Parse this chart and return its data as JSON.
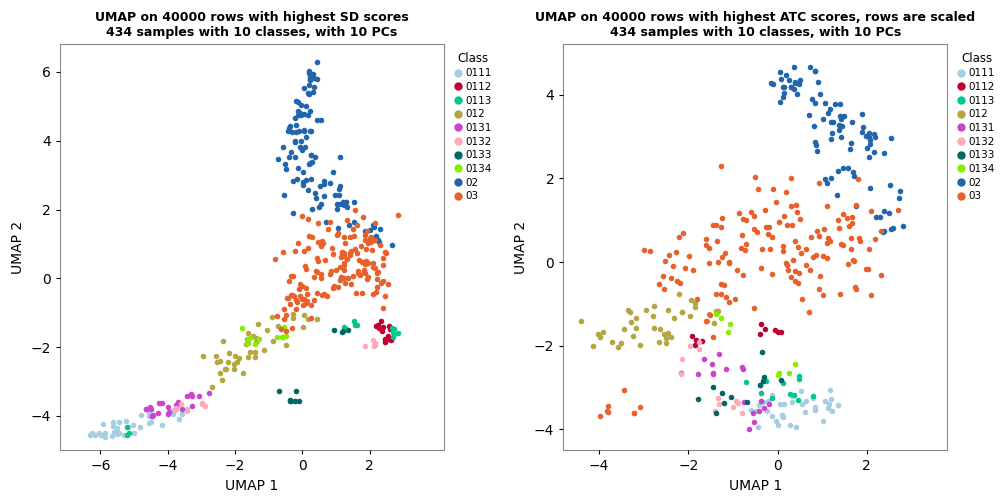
{
  "title1": "UMAP on 40000 rows with highest SD scores\n434 samples with 10 classes, with 10 PCs",
  "title2": "UMAP on 40000 rows with highest ATC scores, rows are scaled\n434 samples with 10 classes, with 10 PCs",
  "xlabel": "UMAP 1",
  "ylabel": "UMAP 2",
  "classes": [
    "0111",
    "0112",
    "0113",
    "012",
    "0131",
    "0132",
    "0133",
    "0134",
    "02",
    "03"
  ],
  "colors": {
    "0111": "#A6CEE3",
    "0112": "#BE0032",
    "0113": "#00C78C",
    "012": "#B5A642",
    "0131": "#CC44CC",
    "0132": "#FFAABB",
    "0133": "#006666",
    "0134": "#88EE00",
    "02": "#2166AC",
    "03": "#E8612C"
  },
  "xlim1": [
    -7.2,
    4.2
  ],
  "ylim1": [
    -5.0,
    6.8
  ],
  "xlim2": [
    -4.8,
    3.8
  ],
  "ylim2": [
    -4.5,
    5.2
  ],
  "xticks1": [
    -6,
    -4,
    -2,
    0,
    2
  ],
  "yticks1": [
    -4,
    -2,
    0,
    2,
    4,
    6
  ],
  "xticks2": [
    -4,
    -2,
    0,
    2
  ],
  "yticks2": [
    -4,
    -2,
    0,
    2,
    4
  ],
  "point_size": 16,
  "bg_color": "#FFFFFF",
  "panel_bg": "#FFFFFF"
}
